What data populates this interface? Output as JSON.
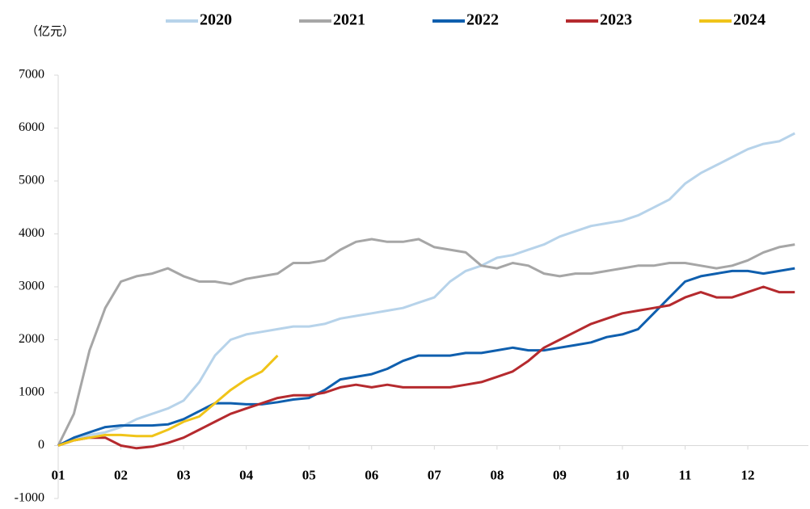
{
  "chart_data": {
    "type": "line",
    "unit_label": "（亿元）",
    "categories": [
      "01",
      null,
      null,
      null,
      "02",
      null,
      null,
      null,
      "03",
      null,
      null,
      null,
      "04",
      null,
      null,
      null,
      "05",
      null,
      null,
      null,
      "06",
      null,
      null,
      null,
      "07",
      null,
      null,
      null,
      "08",
      null,
      null,
      null,
      "09",
      null,
      null,
      null,
      "10",
      null,
      null,
      null,
      "11",
      null,
      null,
      null,
      "12",
      null,
      null,
      null
    ],
    "ylim": [
      -1000,
      7000
    ],
    "yticks": [
      -1000,
      0,
      1000,
      2000,
      3000,
      4000,
      5000,
      6000,
      7000
    ],
    "legend": "top",
    "series": [
      {
        "name": "2020",
        "color": "#b7d3ea",
        "values": [
          0,
          100,
          200,
          250,
          350,
          500,
          600,
          700,
          850,
          1200,
          1700,
          2000,
          2100,
          2150,
          2200,
          2250,
          2250,
          2300,
          2400,
          2450,
          2500,
          2550,
          2600,
          2700,
          2800,
          3100,
          3300,
          3400,
          3550,
          3600,
          3700,
          3800,
          3950,
          4050,
          4150,
          4200,
          4250,
          4350,
          4500,
          4650,
          4950,
          5150,
          5300,
          5450,
          5600,
          5700,
          5750,
          5900
        ]
      },
      {
        "name": "2021",
        "color": "#a6a6a6",
        "values": [
          0,
          600,
          1800,
          2600,
          3100,
          3200,
          3250,
          3350,
          3200,
          3100,
          3100,
          3050,
          3150,
          3200,
          3250,
          3450,
          3450,
          3500,
          3700,
          3850,
          3900,
          3850,
          3850,
          3900,
          3750,
          3700,
          3650,
          3400,
          3350,
          3450,
          3400,
          3250,
          3200,
          3250,
          3250,
          3300,
          3350,
          3400,
          3400,
          3450,
          3450,
          3400,
          3350,
          3400,
          3500,
          3650,
          3750,
          3800
        ]
      },
      {
        "name": "2022",
        "color": "#0f5fae",
        "values": [
          0,
          150,
          250,
          350,
          380,
          380,
          380,
          400,
          500,
          650,
          800,
          800,
          780,
          780,
          820,
          870,
          900,
          1050,
          1250,
          1300,
          1350,
          1450,
          1600,
          1700,
          1700,
          1700,
          1750,
          1750,
          1800,
          1850,
          1800,
          1800,
          1850,
          1900,
          1950,
          2050,
          2100,
          2200,
          2500,
          2800,
          3100,
          3200,
          3250,
          3300,
          3300,
          3250,
          3300,
          3350
        ]
      },
      {
        "name": "2023",
        "color": "#b52a2e",
        "values": [
          0,
          100,
          150,
          150,
          0,
          -50,
          -20,
          50,
          150,
          300,
          450,
          600,
          700,
          800,
          900,
          950,
          950,
          1000,
          1100,
          1150,
          1100,
          1150,
          1100,
          1100,
          1100,
          1100,
          1150,
          1200,
          1300,
          1400,
          1600,
          1850,
          2000,
          2150,
          2300,
          2400,
          2500,
          2550,
          2600,
          2650,
          2800,
          2900,
          2800,
          2800,
          2900,
          3000,
          2900,
          2900
        ]
      },
      {
        "name": "2024",
        "color": "#f0c419",
        "values": [
          0,
          100,
          150,
          200,
          200,
          180,
          180,
          300,
          450,
          550,
          800,
          1050,
          1250,
          1400,
          1700,
          null,
          null,
          null,
          null,
          null,
          null,
          null,
          null,
          null,
          null,
          null,
          null,
          null,
          null,
          null,
          null,
          null,
          null,
          null,
          null,
          null,
          null,
          null,
          null,
          null,
          null,
          null,
          null,
          null,
          null,
          null,
          null,
          null
        ]
      }
    ]
  }
}
